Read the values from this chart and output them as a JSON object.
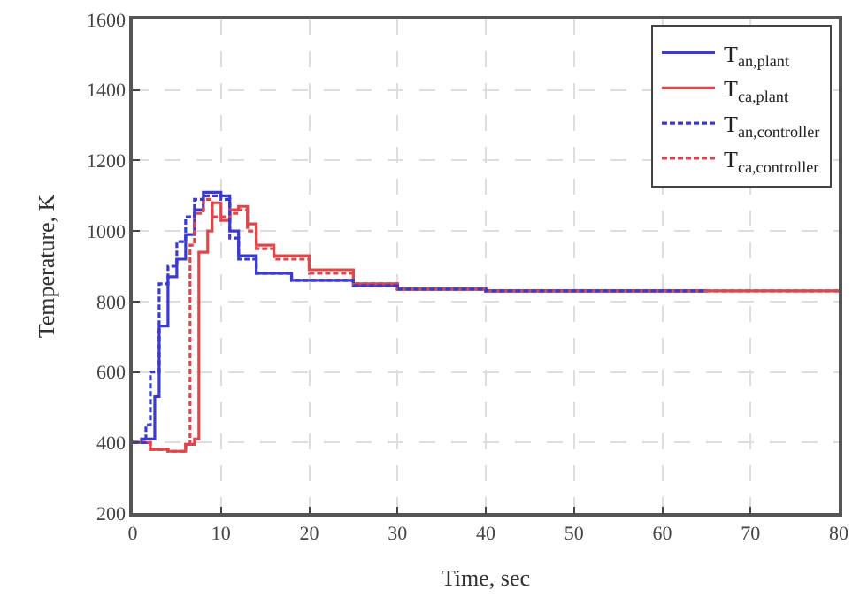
{
  "chart_data": {
    "type": "step",
    "xlabel": "Time, sec",
    "ylabel": "Temperature, K",
    "xlim": [
      0,
      80
    ],
    "ylim": [
      200,
      1600
    ],
    "xticks": [
      0,
      10,
      20,
      30,
      40,
      50,
      60,
      70,
      80
    ],
    "yticks": [
      200,
      400,
      600,
      800,
      1000,
      1200,
      1400,
      1600
    ],
    "grid": true,
    "legend": "top right",
    "marker": "none",
    "series": [
      {
        "name": "T$_{an,plant}$",
        "color": "#3a3acf",
        "line_style": "solid",
        "x": [
          0,
          1,
          2.5,
          3,
          4,
          5,
          6,
          7,
          8,
          10,
          11,
          12,
          14,
          18,
          25,
          30,
          40,
          65
        ],
        "values": [
          400,
          410,
          530,
          730,
          870,
          920,
          990,
          1060,
          1110,
          1100,
          1000,
          930,
          880,
          860,
          845,
          835,
          830,
          830
        ]
      },
      {
        "name": "T$_{ca,plant}$",
        "color": "#e0454a",
        "line_style": "solid",
        "x": [
          0,
          2,
          4,
          6,
          7,
          7.5,
          8.5,
          9,
          10,
          11,
          12,
          13,
          14,
          16,
          20,
          25,
          30,
          40,
          80
        ],
        "values": [
          400,
          380,
          375,
          395,
          410,
          940,
          1000,
          1080,
          1030,
          1060,
          1070,
          1020,
          960,
          930,
          890,
          850,
          835,
          830,
          830
        ]
      },
      {
        "name": "T$_{an,controller}$",
        "color": "#3a3acf",
        "line_style": "dashed",
        "x": [
          0,
          1.5,
          2,
          3,
          4,
          5,
          6,
          7,
          8,
          10,
          11,
          12,
          14,
          18,
          25,
          30,
          40,
          65
        ],
        "values": [
          400,
          450,
          600,
          850,
          900,
          970,
          1040,
          1090,
          1100,
          1090,
          980,
          920,
          880,
          860,
          845,
          835,
          830,
          830
        ]
      },
      {
        "name": "T$_{ca,controller}$",
        "color": "#e0454a",
        "line_style": "dashed",
        "x": [
          0,
          2,
          4,
          6,
          6.5,
          7,
          8,
          9,
          10,
          11,
          12,
          13,
          14,
          16,
          20,
          25,
          30,
          40,
          80
        ],
        "values": [
          400,
          380,
          375,
          395,
          960,
          1050,
          1090,
          1040,
          1040,
          1050,
          1060,
          1000,
          950,
          920,
          880,
          850,
          835,
          830,
          830
        ]
      }
    ]
  }
}
